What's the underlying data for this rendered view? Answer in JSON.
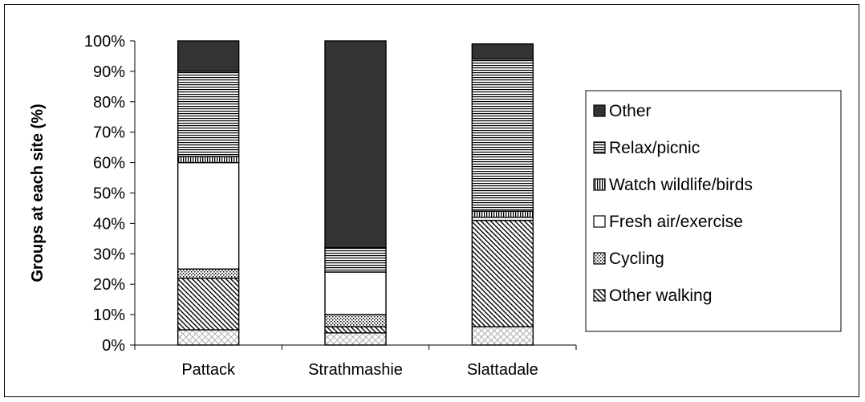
{
  "chart_data": {
    "type": "bar",
    "stacked": true,
    "percent": true,
    "title": "",
    "xlabel": "",
    "ylabel": "Groups at each site (%)",
    "ylim": [
      0,
      100
    ],
    "y_tick_step": 10,
    "y_tick_format": "percent",
    "grid": false,
    "legend_position": "right",
    "categories": [
      "Pattack",
      "Strathmashie",
      "Slattadale"
    ],
    "series": [
      {
        "name": "Other walking",
        "key": "other-walking",
        "pattern": "diag-dense",
        "values": [
          17,
          2,
          35
        ]
      },
      {
        "name": "Cycling",
        "key": "cycling",
        "pattern": "dots",
        "values": [
          3,
          4,
          0
        ]
      },
      {
        "name": "Fresh air/exercise",
        "key": "fresh-air-exercise",
        "pattern": "solid-white",
        "values": [
          35,
          14,
          1
        ]
      },
      {
        "name": "Watch wildlife/birds",
        "key": "watch-wildlife-birds",
        "pattern": "vertical",
        "values": [
          2,
          0,
          2
        ]
      },
      {
        "name": "Relax/picnic",
        "key": "relax-picnic",
        "pattern": "horizontal",
        "values": [
          28,
          8,
          50
        ]
      },
      {
        "name": "Other",
        "key": "other",
        "pattern": "solid-dark",
        "values": [
          10,
          68,
          5
        ]
      }
    ],
    "base_segment": {
      "pattern": "checker-light",
      "values": [
        5,
        4,
        6
      ]
    },
    "colors": {
      "dark": "#333333",
      "line": "#000000",
      "light_pattern": "#c0c0c0"
    }
  }
}
